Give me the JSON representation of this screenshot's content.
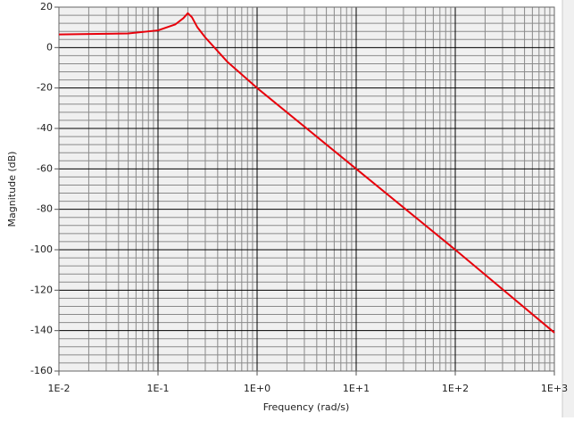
{
  "chart_data": {
    "type": "line",
    "x_label": "Frequency (rad/s)",
    "y_label": "Magnitude (dB)",
    "x_log": true,
    "grid": true,
    "xlim": [
      0.01,
      1000
    ],
    "xticks": [
      {
        "value": 0.01,
        "label": "1E-2"
      },
      {
        "value": 0.1,
        "label": "1E-1"
      },
      {
        "value": 1,
        "label": "1E+0"
      },
      {
        "value": 10,
        "label": "1E+1"
      },
      {
        "value": 100,
        "label": "1E+2"
      },
      {
        "value": 1000,
        "label": "1E+3"
      }
    ],
    "x_minor_ticks": [
      0.02,
      0.03,
      0.04,
      0.05,
      0.06,
      0.07,
      0.08,
      0.09,
      0.2,
      0.3,
      0.4,
      0.5,
      0.6,
      0.7,
      0.8,
      0.9,
      2,
      3,
      4,
      5,
      6,
      7,
      8,
      9,
      20,
      30,
      40,
      50,
      60,
      70,
      80,
      90,
      200,
      300,
      400,
      500,
      600,
      700,
      800,
      900
    ],
    "ylim": [
      -160,
      20
    ],
    "yticks": [
      -160,
      -140,
      -120,
      -100,
      -80,
      -60,
      -40,
      -20,
      0,
      20
    ],
    "y_minor_ticks": [
      -156,
      -152,
      -148,
      -144,
      -136,
      -132,
      -128,
      -124,
      -116,
      -112,
      -108,
      -104,
      -96,
      -92,
      -88,
      -84,
      -76,
      -72,
      -68,
      -64,
      -56,
      -52,
      -48,
      -44,
      -36,
      -32,
      -28,
      -24,
      -16,
      -12,
      -8,
      -4,
      4,
      8,
      12,
      16
    ],
    "series": [
      {
        "color": "#e8000b",
        "x": [
          0.01,
          0.02,
          0.05,
          0.1,
          0.15,
          0.18,
          0.2,
          0.22,
          0.25,
          0.3,
          0.5,
          1,
          10,
          100,
          1000
        ],
        "values": [
          6.5,
          6.7,
          7.0,
          8.5,
          11.5,
          14.5,
          17,
          15,
          10,
          5,
          -7,
          -20,
          -60,
          -100,
          -141
        ]
      }
    ]
  }
}
